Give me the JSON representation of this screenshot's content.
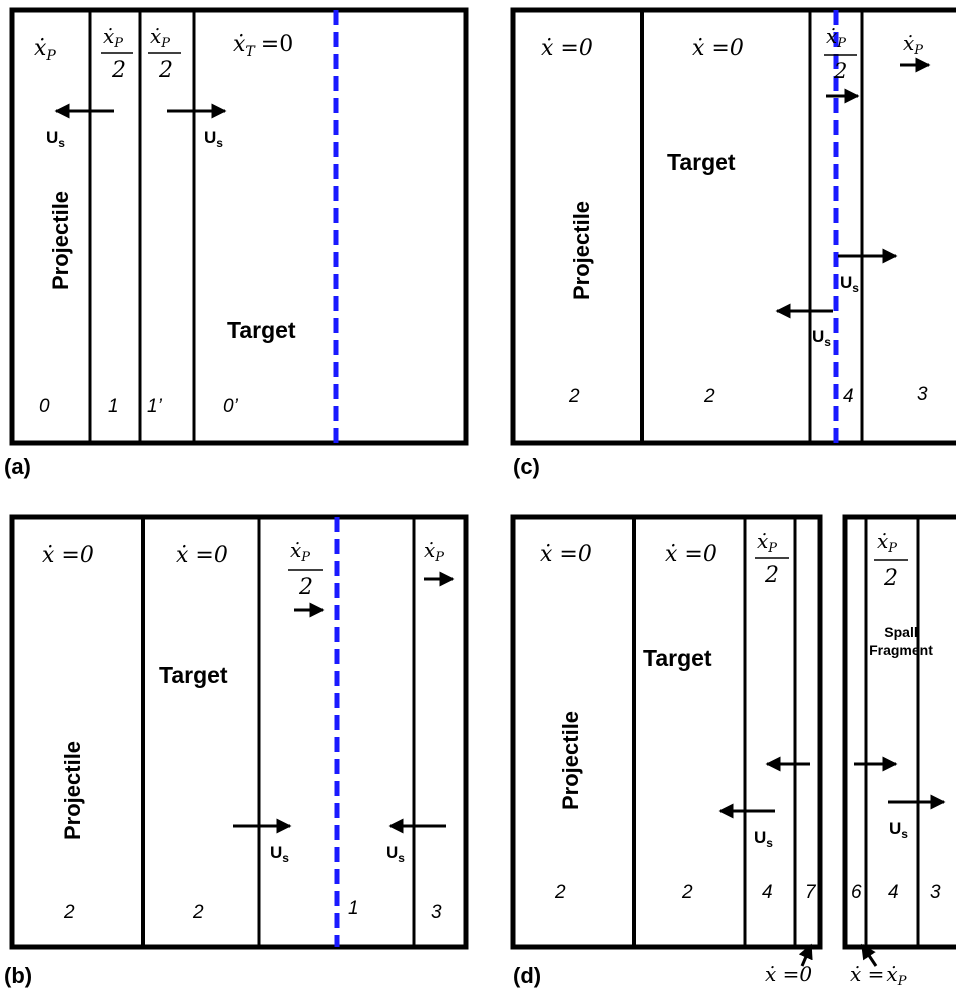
{
  "colors": {
    "line": "#000000",
    "dashed_interface": "#1a1aff",
    "background": "#ffffff"
  },
  "symbols": {
    "xdot": "ẋ",
    "sub_P": "P",
    "sub_T": "T",
    "half": "2",
    "zero_eq": "=0",
    "U_s": "U",
    "U_sub": "s"
  },
  "panel_a": {
    "caption": "(a)",
    "velocity_T": "ẋ",
    "velocity_T_rhs": "=0",
    "projectile_label": "Projectile",
    "target_label": "Target",
    "region_numbers": [
      "0",
      "1",
      "1’",
      "0’"
    ]
  },
  "panel_b": {
    "caption": "(b)",
    "zero_velocity": "ẋ  =0",
    "projectile_label": "Projectile",
    "target_label": "Target",
    "region_numbers": [
      "2",
      "2",
      "1",
      "3"
    ]
  },
  "panel_c": {
    "caption": "(c)",
    "zero_velocity": "ẋ  =0",
    "projectile_label": "Projectile",
    "target_label": "Target",
    "region_numbers": [
      "2",
      "2",
      "4",
      "3"
    ]
  },
  "panel_d": {
    "caption": "(d)",
    "zero_velocity": "ẋ  =0",
    "projectile_label": "Projectile",
    "target_label": "Target",
    "spall_label_1": "Spall",
    "spall_label_2": "Fragment",
    "region_numbers": [
      "2",
      "2",
      "4",
      "7",
      "6",
      "4",
      "3"
    ],
    "bottom_left": "ẋ  =0",
    "bottom_right_lhs": "ẋ  =",
    "bottom_right_rhs": "ẋ"
  }
}
